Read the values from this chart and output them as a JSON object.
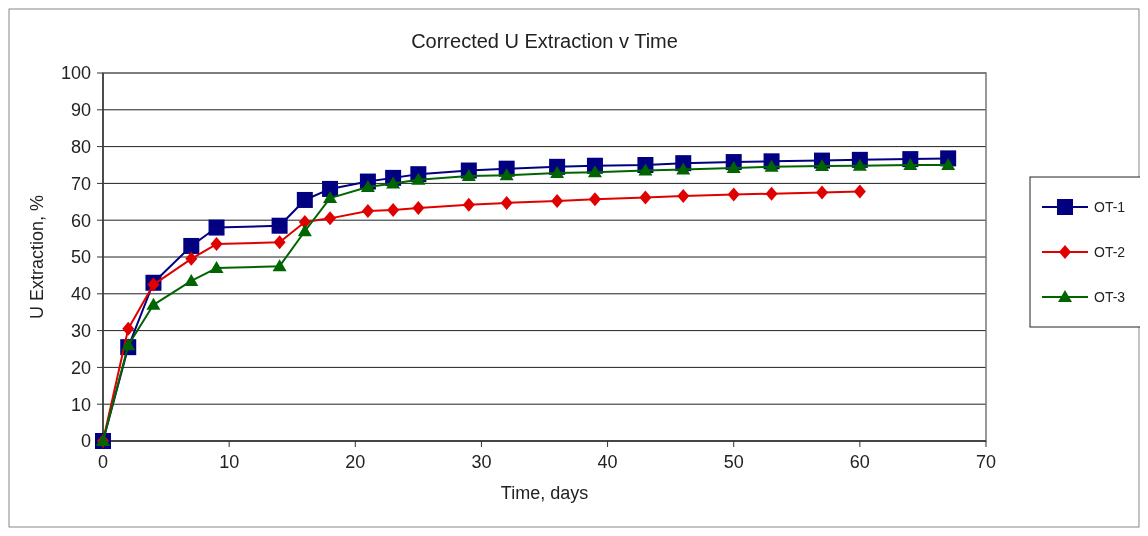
{
  "chart_data": {
    "type": "line",
    "title": "Corrected U Extraction v Time",
    "xlabel": "Time, days",
    "ylabel": "U Extraction, %",
    "x": [
      0,
      2,
      4,
      7,
      9,
      14,
      16,
      18,
      21,
      23,
      25,
      29,
      32,
      36,
      39,
      43,
      46,
      50,
      53,
      57,
      60,
      64,
      67
    ],
    "series": [
      {
        "name": "OT-1",
        "color": "#000080",
        "marker": "square",
        "values": [
          0,
          25.5,
          43,
          53,
          58,
          58.5,
          65.5,
          68.5,
          70.5,
          71.5,
          72.5,
          73.5,
          74,
          74.5,
          74.8,
          75,
          75.5,
          75.8,
          76,
          76.2,
          76.4,
          76.6,
          76.8
        ]
      },
      {
        "name": "OT-2",
        "color": "#e00000",
        "marker": "diamond",
        "values": [
          0,
          30.5,
          42.5,
          49.5,
          53.5,
          54,
          59.5,
          60.5,
          62.5,
          62.8,
          63.3,
          64.2,
          64.7,
          65.2,
          65.7,
          66.2,
          66.6,
          67,
          67.2,
          67.5,
          67.8,
          null,
          null
        ]
      },
      {
        "name": "OT-3",
        "color": "#006400",
        "marker": "triangle",
        "values": [
          0,
          26,
          37,
          43.5,
          47,
          47.5,
          57,
          66,
          69,
          70,
          71,
          72,
          72.2,
          72.8,
          73,
          73.5,
          73.8,
          74.2,
          74.5,
          74.7,
          74.8,
          75,
          75
        ]
      }
    ],
    "xlim": [
      0,
      70
    ],
    "xticks": [
      0,
      10,
      20,
      30,
      40,
      50,
      60,
      70
    ],
    "ylim": [
      0,
      100
    ],
    "yticks": [
      0,
      10,
      20,
      30,
      40,
      50,
      60,
      70,
      80,
      90,
      100
    ],
    "grid": "y",
    "legend": "right"
  }
}
